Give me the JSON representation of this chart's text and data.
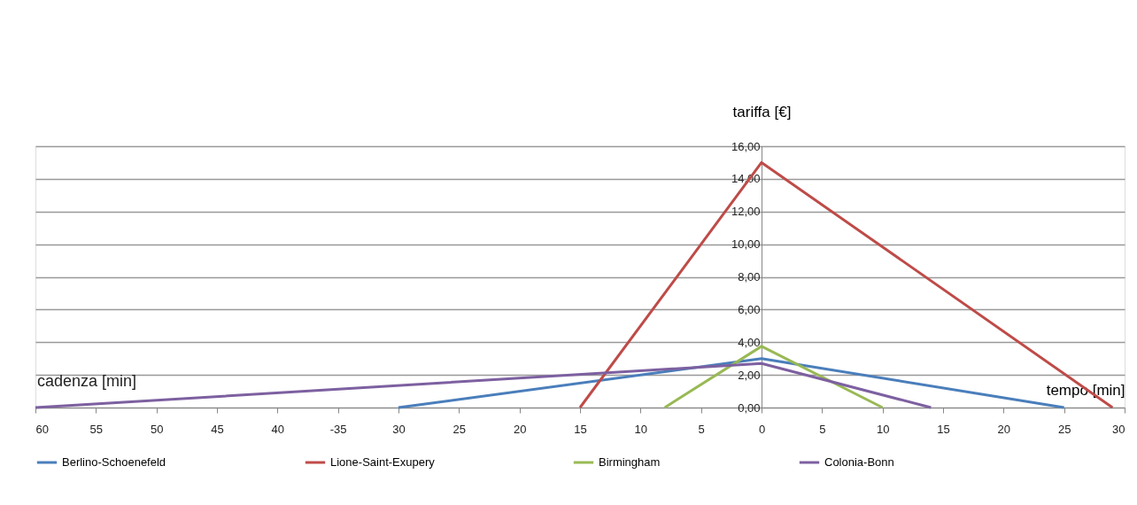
{
  "chart_data": {
    "type": "line",
    "xlabel": "tempo [min]",
    "ylabel": "tariffa [€]",
    "annotations": [
      "cadenza [min]"
    ],
    "series": [
      {
        "name": "Berlino-Schoenefeld",
        "color": "#4a7ebb",
        "x": [
          -30,
          0,
          25
        ],
        "values": [
          0,
          3.0,
          0
        ]
      },
      {
        "name": "Lione-Saint-Exupery",
        "color": "#be4b48",
        "x": [
          -15,
          0,
          29
        ],
        "values": [
          0,
          15,
          0
        ]
      },
      {
        "name": "Birmingham",
        "color": "#98b954",
        "x": [
          -8,
          0,
          10
        ],
        "values": [
          0,
          3.75,
          0
        ]
      },
      {
        "name": "Colonia-Bonn",
        "color": "#7d60a0",
        "x": [
          -60,
          0,
          14
        ],
        "values": [
          0,
          2.7,
          0
        ]
      }
    ],
    "xlim": [
      -60,
      30
    ],
    "xticks": [
      {
        "value": -60,
        "label": "60"
      },
      {
        "value": -55,
        "label": "55"
      },
      {
        "value": -50,
        "label": "50"
      },
      {
        "value": -45,
        "label": "45"
      },
      {
        "value": -40,
        "label": "40"
      },
      -35,
      {
        "value": -30,
        "label": "30"
      },
      {
        "value": -25,
        "label": "25"
      },
      {
        "value": -20,
        "label": "20"
      },
      {
        "value": -15,
        "label": "15"
      },
      {
        "value": -10,
        "label": "10"
      },
      {
        "value": -5,
        "label": "5"
      },
      0,
      5,
      10,
      15,
      20,
      25,
      30
    ],
    "ylim": [
      0,
      16
    ],
    "yticks": [
      {
        "value": 0,
        "label": "0,00"
      },
      {
        "value": 2,
        "label": "2,00"
      },
      {
        "value": 4,
        "label": "4,00"
      },
      {
        "value": 6,
        "label": "6,00"
      },
      {
        "value": 8,
        "label": "8,00"
      },
      {
        "value": 10,
        "label": "10,00"
      },
      {
        "value": 12,
        "label": "12,00"
      },
      {
        "value": 14,
        "label": "14,00"
      },
      {
        "value": 16,
        "label": "16,00"
      }
    ],
    "grid": "y",
    "legend": "bottom",
    "marker": "none",
    "line_style": "solid"
  }
}
